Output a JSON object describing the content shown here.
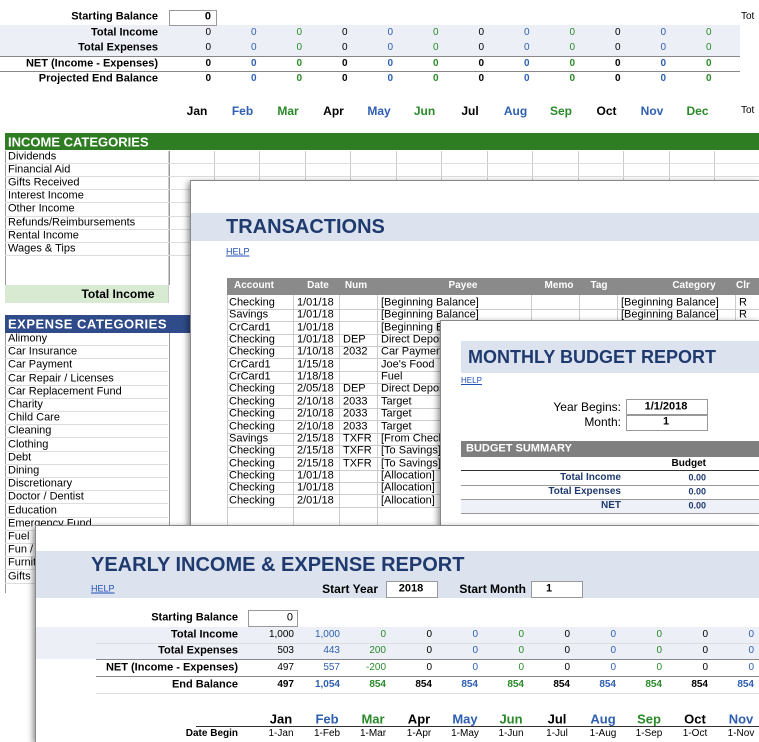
{
  "sheet": {
    "summary_labels": [
      "Starting Balance",
      "Total Income",
      "Total Expenses",
      "NET (Income - Expenses)",
      "Projected End Balance"
    ],
    "starting_balance": 0,
    "rows": [
      [
        0,
        0,
        0,
        0,
        0,
        0,
        0,
        0,
        0,
        0,
        0,
        0
      ],
      [
        0,
        0,
        0,
        0,
        0,
        0,
        0,
        0,
        0,
        0,
        0,
        0
      ],
      [
        0,
        0,
        0,
        0,
        0,
        0,
        0,
        0,
        0,
        0,
        0,
        0
      ],
      [
        0,
        0,
        0,
        0,
        0,
        0,
        0,
        0,
        0,
        0,
        0,
        0
      ]
    ],
    "months": [
      "Jan",
      "Feb",
      "Mar",
      "Apr",
      "May",
      "Jun",
      "Jul",
      "Aug",
      "Sep",
      "Oct",
      "Nov",
      "Dec"
    ],
    "total_top": "Tot",
    "total_bottom": "Tot"
  },
  "income": {
    "header": "INCOME CATEGORIES",
    "items": [
      "Dividends",
      "Financial Aid",
      "Gifts Received",
      "Interest Income",
      "Other Income",
      "Refunds/Reimbursements",
      "Rental Income",
      "Wages & Tips"
    ],
    "total_label": "Total Income"
  },
  "expense": {
    "header": "EXPENSE CATEGORIES",
    "items": [
      "Alimony",
      "Car Insurance",
      "Car Payment",
      "Car Repair / Licenses",
      "Car Replacement Fund",
      "Charity",
      "Child Care",
      "Cleaning",
      "Clothing",
      "Debt",
      "Dining",
      "Discretionary",
      "Doctor / Dentist",
      "Education",
      "Emergency Fund",
      "Fuel",
      "Fun / Entertainment",
      "Furniture",
      "Gifts"
    ]
  },
  "transactions": {
    "title": "TRANSACTIONS",
    "help": "HELP",
    "columns": [
      "Account",
      "Date",
      "Num",
      "Payee",
      "Memo",
      "Tag",
      "Category",
      "Clr"
    ],
    "rows": [
      {
        "account": "Checking",
        "date": "1/01/18",
        "payee": "[Beginning Balance]",
        "category": "[Beginning Balance]",
        "clr": "R"
      },
      {
        "account": "Savings",
        "date": "1/01/18",
        "payee": "[Beginning Balance]",
        "category": "[Beginning Balance]",
        "clr": "R"
      },
      {
        "account": "CrCard1",
        "date": "1/01/18",
        "payee": "[Beginning Balance]"
      },
      {
        "account": "Checking",
        "date": "1/01/18",
        "num": "DEP",
        "payee": "Direct Deposit"
      },
      {
        "account": "Checking",
        "date": "1/10/18",
        "num": "2032",
        "payee": "Car Payment"
      },
      {
        "account": "CrCard1",
        "date": "1/15/18",
        "payee": "Joe's Food"
      },
      {
        "account": "CrCard1",
        "date": "1/18/18",
        "payee": "Fuel"
      },
      {
        "account": "Checking",
        "date": "2/05/18",
        "num": "DEP",
        "payee": "Direct Deposit"
      },
      {
        "account": "Checking",
        "date": "2/10/18",
        "num": "2033",
        "payee": "Target"
      },
      {
        "account": "Checking",
        "date": "2/10/18",
        "num": "2033",
        "payee": "Target"
      },
      {
        "account": "Checking",
        "date": "2/10/18",
        "num": "2033",
        "payee": "Target"
      },
      {
        "account": "Savings",
        "date": "2/15/18",
        "num": "TXFR",
        "payee": "[From Checking]"
      },
      {
        "account": "Checking",
        "date": "2/15/18",
        "num": "TXFR",
        "payee": "[To Savings]"
      },
      {
        "account": "Checking",
        "date": "2/15/18",
        "num": "TXFR",
        "payee": "[To Savings]"
      },
      {
        "account": "Checking",
        "date": "1/01/18",
        "payee": "[Allocation]"
      },
      {
        "account": "Checking",
        "date": "1/01/18",
        "payee": "[Allocation]"
      },
      {
        "account": "Checking",
        "date": "2/01/18",
        "payee": "[Allocation]"
      }
    ]
  },
  "monthly": {
    "title": "MONTHLY BUDGET REPORT",
    "help": "HELP",
    "year_label": "Year Begins:",
    "year_value": "1/1/2018",
    "month_label": "Month:",
    "month_value": "1",
    "summary_header": "BUDGET SUMMARY",
    "budget_header": "Budget",
    "rows": [
      {
        "label": "Total Income",
        "budget": "0.00"
      },
      {
        "label": "Total Expenses",
        "budget": "0.00"
      },
      {
        "label": "NET",
        "budget": "0.00"
      }
    ]
  },
  "yearly": {
    "title": "YEARLY INCOME & EXPENSE REPORT",
    "help": "HELP",
    "start_year_label": "Start Year",
    "start_year": "2018",
    "start_month_label": "Start Month",
    "start_month": "1",
    "starting_label": "Starting Balance",
    "starting_value": "0",
    "rows": [
      {
        "label": "Total Income",
        "values": [
          "1,000",
          "1,000",
          "0",
          "0",
          "0",
          "0",
          "0",
          "0",
          "0",
          "0",
          "0"
        ]
      },
      {
        "label": "Total Expenses",
        "values": [
          "503",
          "443",
          "200",
          "0",
          "0",
          "0",
          "0",
          "0",
          "0",
          "0",
          "0"
        ]
      },
      {
        "label": "NET (Income - Expenses)",
        "values": [
          "497",
          "557",
          "-200",
          "0",
          "0",
          "0",
          "0",
          "0",
          "0",
          "0",
          "0"
        ]
      },
      {
        "label": "End Balance",
        "values": [
          "497",
          "1,054",
          "854",
          "854",
          "854",
          "854",
          "854",
          "854",
          "854",
          "854",
          "854"
        ]
      }
    ],
    "months": [
      "Jan",
      "Feb",
      "Mar",
      "Apr",
      "May",
      "Jun",
      "Jul",
      "Aug",
      "Sep",
      "Oct",
      "Nov"
    ],
    "date_label": "Date Begin",
    "dates": [
      "1-Jan",
      "1-Feb",
      "1-Mar",
      "1-Apr",
      "1-May",
      "1-Jun",
      "1-Jul",
      "1-Aug",
      "1-Sep",
      "1-Oct",
      "1-Nov"
    ]
  }
}
